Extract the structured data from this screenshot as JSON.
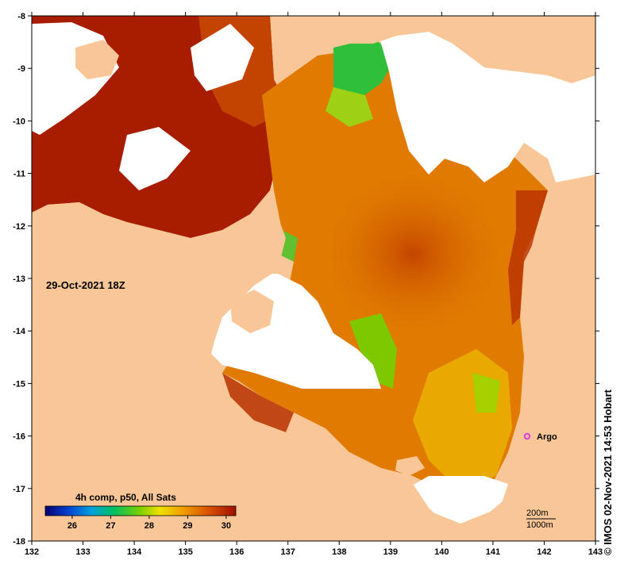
{
  "map": {
    "timestamp": "29-Oct-2021 18Z",
    "credit": "© IMOS 02-Nov-2021 14:53 Hobart",
    "x_ticks": [
      "132",
      "133",
      "134",
      "135",
      "136",
      "137",
      "138",
      "139",
      "140",
      "141",
      "142",
      "143"
    ],
    "y_ticks": [
      "-8",
      "-9",
      "-10",
      "-11",
      "-12",
      "-13",
      "-14",
      "-15",
      "-16",
      "-17",
      "-18"
    ],
    "lon_range": [
      132,
      143
    ],
    "lat_range": [
      -18,
      -8
    ]
  },
  "legend": {
    "title": "4h comp, p50, All Sats",
    "ticks": [
      "26",
      "27",
      "28",
      "29",
      "30"
    ],
    "range": [
      25.3,
      30.25
    ]
  },
  "marker": {
    "label": "Argo",
    "lon": 141.72,
    "lat": -16.0,
    "color": "#e040e0"
  },
  "contours": [
    "200m",
    "1000m"
  ],
  "colors": {
    "land": "#f9c797",
    "no_data": "#ffffff",
    "frame": "#000000",
    "sst_hot": "#a01800",
    "sst_warm": "#e07a00",
    "sst_mid": "#eba600",
    "sst_cool": "#2fbf3a"
  }
}
